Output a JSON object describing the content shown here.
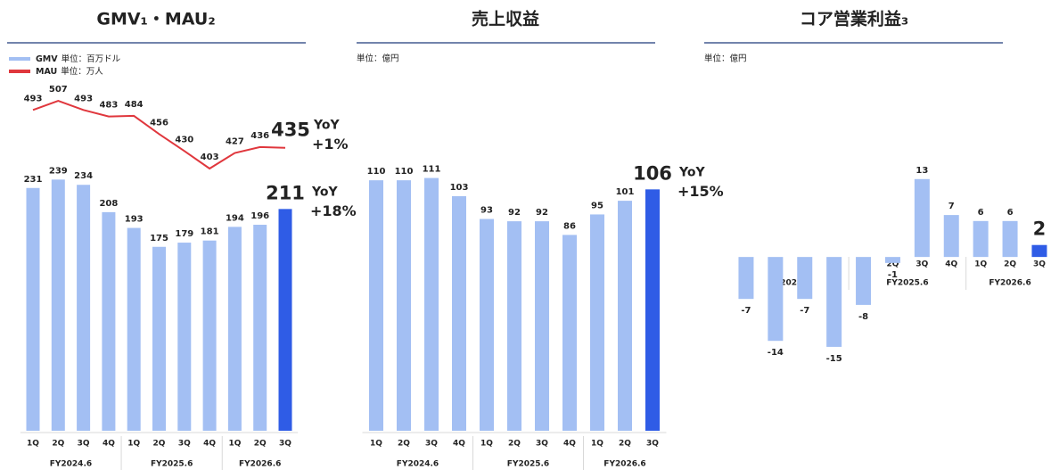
{
  "chart_data": [
    {
      "type": "bar_line",
      "title": "GMV₁・MAU₂",
      "categories": [
        "1Q",
        "2Q",
        "3Q",
        "4Q",
        "1Q",
        "2Q",
        "3Q",
        "4Q",
        "1Q",
        "2Q",
        "3Q"
      ],
      "groups": [
        "FY2024.6",
        "FY2025.6",
        "FY2026.6"
      ],
      "ylim": [
        0,
        325
      ],
      "y2lim": [
        0,
        525
      ],
      "series": [
        {
          "name": "GMV",
          "unit": "単位：百万ドル",
          "kind": "bar",
          "color": "#a3bff3",
          "highlight_color": "#2f5ce6",
          "values": [
            231,
            239,
            234,
            208,
            193,
            175,
            179,
            181,
            194,
            196,
            211
          ],
          "annotation": [
            "YoY",
            "+18%"
          ]
        },
        {
          "name": "MAU",
          "unit": "単位：万人",
          "kind": "line",
          "axis": "y2",
          "color": "#e0373d",
          "values": [
            493,
            507,
            493,
            483,
            484,
            456,
            430,
            403,
            427,
            436,
            435
          ],
          "annotation": [
            "YoY",
            "+1%"
          ]
        }
      ]
    },
    {
      "type": "bar",
      "title": "売上収益",
      "unit": "単位：億円",
      "categories": [
        "1Q",
        "2Q",
        "3Q",
        "4Q",
        "1Q",
        "2Q",
        "3Q",
        "4Q",
        "1Q",
        "2Q",
        "3Q"
      ],
      "groups": [
        "FY2024.6",
        "FY2025.6",
        "FY2026.6"
      ],
      "ylim": [
        0,
        150
      ],
      "series": [
        {
          "kind": "bar",
          "color": "#a3bff3",
          "highlight_color": "#2f5ce6",
          "values": [
            110,
            110,
            111,
            103,
            93,
            92,
            92,
            86,
            95,
            101,
            106
          ],
          "annotation": [
            "YoY",
            "+15%"
          ]
        }
      ]
    },
    {
      "type": "bar",
      "title": "コア営業利益₃",
      "unit": "単位：億円",
      "categories": [
        "1Q",
        "2Q",
        "3Q",
        "4Q",
        "1Q",
        "2Q",
        "3Q",
        "4Q",
        "1Q",
        "2Q",
        "3Q"
      ],
      "groups": [
        "FY2024.6",
        "FY2025.6",
        "FY2026.6"
      ],
      "ylim": [
        -29,
        28
      ],
      "series": [
        {
          "kind": "bar",
          "color": "#a3bff3",
          "highlight_color": "#2f5ce6",
          "values": [
            -7,
            -14,
            -7,
            -15,
            -8,
            -1,
            13,
            7,
            6,
            6,
            2
          ]
        }
      ]
    }
  ]
}
